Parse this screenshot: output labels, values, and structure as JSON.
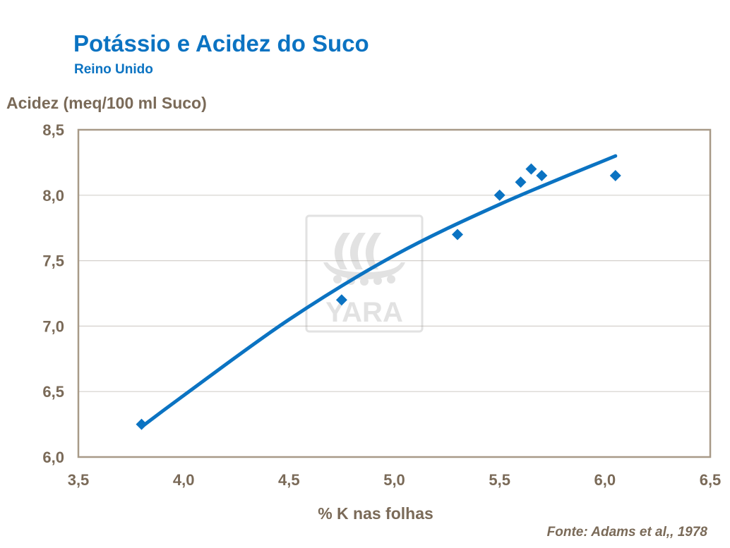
{
  "title": "Potássio e Acidez do Suco",
  "subtitle": "Reino Unido",
  "source": "Fonte: Adams et al,, 1978",
  "watermark": {
    "text": "YARA",
    "icon": "yara-viking-ship-logo"
  },
  "colors": {
    "title": "#0b73c2",
    "series": "#0b73c2",
    "axis_text": "#7a6a58",
    "frame": "#a89a88",
    "grid": "#d4d0cc"
  },
  "chart_data": {
    "type": "scatter",
    "ylabel": "Acidez (meq/100 ml Suco)",
    "xlabel": "% K nas folhas",
    "xlim": [
      3.5,
      6.5
    ],
    "ylim": [
      6.0,
      8.5
    ],
    "x_ticks": [
      "3,5",
      "4,0",
      "4,5",
      "5,0",
      "5,5",
      "6,0",
      "6,5"
    ],
    "y_ticks": [
      "6,0",
      "6,5",
      "7,0",
      "7,5",
      "8,0",
      "8,5"
    ],
    "grid": "horizontal",
    "series": [
      {
        "marker": "diamond",
        "points": [
          {
            "x": 3.8,
            "y": 6.25
          },
          {
            "x": 4.75,
            "y": 7.2
          },
          {
            "x": 5.3,
            "y": 7.7
          },
          {
            "x": 5.5,
            "y": 8.0
          },
          {
            "x": 5.6,
            "y": 8.1
          },
          {
            "x": 5.65,
            "y": 8.2
          },
          {
            "x": 5.7,
            "y": 8.15
          },
          {
            "x": 6.05,
            "y": 8.15
          }
        ]
      }
    ],
    "trendline": {
      "type": "curve",
      "points": [
        {
          "x": 3.8,
          "y": 6.23
        },
        {
          "x": 4.0,
          "y": 6.47
        },
        {
          "x": 4.5,
          "y": 7.05
        },
        {
          "x": 5.0,
          "y": 7.54
        },
        {
          "x": 5.5,
          "y": 7.93
        },
        {
          "x": 6.05,
          "y": 8.3
        }
      ]
    }
  }
}
